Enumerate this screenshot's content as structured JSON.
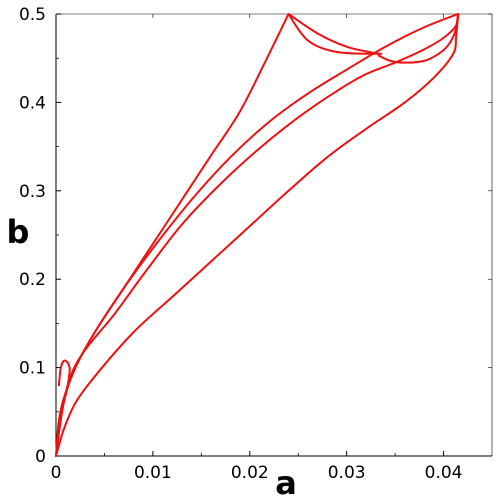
{
  "chart_data": {
    "type": "line",
    "xlabel": "a",
    "ylabel": "b",
    "xlim": [
      0,
      0.045
    ],
    "ylim": [
      0,
      0.5
    ],
    "x_ticks": [
      0,
      0.01,
      0.02,
      0.03,
      0.04
    ],
    "x_tick_labels": [
      "0",
      "0.01",
      "0.02",
      "0.03",
      "0.04"
    ],
    "y_ticks": [
      0,
      0.1,
      0.2,
      0.3,
      0.4,
      0.5
    ],
    "y_tick_labels": [
      "0",
      "0.1",
      "0.2",
      "0.3",
      "0.4",
      "0.5"
    ],
    "grid": false,
    "line_color": "#ee1111",
    "series": [
      {
        "points": [
          [
            0.0,
            0.0
          ],
          [
            0.0003,
            0.04
          ],
          [
            0.0008,
            0.065
          ],
          [
            0.002,
            0.1
          ],
          [
            0.004,
            0.14
          ],
          [
            0.007,
            0.19
          ],
          [
            0.01,
            0.24
          ],
          [
            0.013,
            0.29
          ],
          [
            0.016,
            0.34
          ],
          [
            0.019,
            0.39
          ],
          [
            0.022,
            0.455
          ],
          [
            0.024,
            0.5
          ]
        ]
      },
      {
        "points": [
          [
            0.024,
            0.5
          ],
          [
            0.027,
            0.478
          ],
          [
            0.03,
            0.463
          ],
          [
            0.0328,
            0.456
          ],
          [
            0.0333,
            0.455
          ],
          [
            0.029,
            0.457
          ],
          [
            0.026,
            0.47
          ],
          [
            0.024,
            0.5
          ]
        ]
      },
      {
        "points": [
          [
            0.0,
            0.0
          ],
          [
            0.0008,
            0.06
          ],
          [
            0.002,
            0.1
          ],
          [
            0.004,
            0.14
          ],
          [
            0.007,
            0.19
          ],
          [
            0.01,
            0.235
          ],
          [
            0.014,
            0.29
          ],
          [
            0.018,
            0.338
          ],
          [
            0.022,
            0.378
          ],
          [
            0.026,
            0.41
          ],
          [
            0.03,
            0.437
          ],
          [
            0.034,
            0.463
          ],
          [
            0.038,
            0.485
          ],
          [
            0.0415,
            0.5
          ]
        ]
      },
      {
        "points": [
          [
            0.0415,
            0.5
          ],
          [
            0.0412,
            0.48
          ],
          [
            0.0405,
            0.465
          ],
          [
            0.0395,
            0.455
          ],
          [
            0.038,
            0.447
          ],
          [
            0.036,
            0.445
          ],
          [
            0.0345,
            0.447
          ],
          [
            0.0333,
            0.453
          ]
        ]
      },
      {
        "points": [
          [
            0.0,
            0.0
          ],
          [
            0.0006,
            0.05
          ],
          [
            0.0015,
            0.09
          ],
          [
            0.003,
            0.12
          ],
          [
            0.006,
            0.16
          ],
          [
            0.009,
            0.205
          ],
          [
            0.013,
            0.262
          ],
          [
            0.017,
            0.308
          ],
          [
            0.021,
            0.348
          ],
          [
            0.025,
            0.383
          ],
          [
            0.029,
            0.413
          ],
          [
            0.032,
            0.432
          ],
          [
            0.035,
            0.445
          ],
          [
            0.038,
            0.46
          ],
          [
            0.04,
            0.473
          ],
          [
            0.0413,
            0.487
          ],
          [
            0.0415,
            0.5
          ]
        ]
      },
      {
        "points": [
          [
            0.0,
            0.0
          ],
          [
            0.0008,
            0.03
          ],
          [
            0.002,
            0.06
          ],
          [
            0.004,
            0.09
          ],
          [
            0.008,
            0.14
          ],
          [
            0.012,
            0.18
          ],
          [
            0.016,
            0.22
          ],
          [
            0.02,
            0.26
          ],
          [
            0.024,
            0.3
          ],
          [
            0.028,
            0.338
          ],
          [
            0.032,
            0.37
          ],
          [
            0.036,
            0.4
          ],
          [
            0.039,
            0.428
          ],
          [
            0.041,
            0.455
          ],
          [
            0.0413,
            0.475
          ],
          [
            0.0415,
            0.5
          ]
        ]
      },
      {
        "points": [
          [
            0.0007,
            0.06
          ],
          [
            0.0012,
            0.08
          ],
          [
            0.0014,
            0.1
          ],
          [
            0.0009,
            0.108
          ],
          [
            0.0005,
            0.1
          ],
          [
            0.0003,
            0.08
          ]
        ]
      }
    ]
  }
}
